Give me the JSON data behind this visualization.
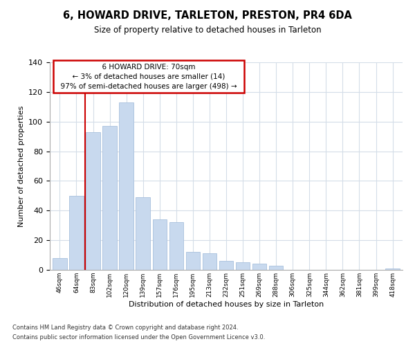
{
  "title": "6, HOWARD DRIVE, TARLETON, PRESTON, PR4 6DA",
  "subtitle": "Size of property relative to detached houses in Tarleton",
  "xlabel": "Distribution of detached houses by size in Tarleton",
  "ylabel": "Number of detached properties",
  "categories": [
    "46sqm",
    "64sqm",
    "83sqm",
    "102sqm",
    "120sqm",
    "139sqm",
    "157sqm",
    "176sqm",
    "195sqm",
    "213sqm",
    "232sqm",
    "251sqm",
    "269sqm",
    "288sqm",
    "306sqm",
    "325sqm",
    "344sqm",
    "362sqm",
    "381sqm",
    "399sqm",
    "418sqm"
  ],
  "values": [
    8,
    50,
    93,
    97,
    113,
    49,
    34,
    32,
    12,
    11,
    6,
    5,
    4,
    3,
    0,
    0,
    0,
    0,
    0,
    0,
    1
  ],
  "bar_color": "#c8d9ee",
  "bar_edge_color": "#a8c0de",
  "vline_x": 1.5,
  "vline_color": "#cc0000",
  "ylim": [
    0,
    140
  ],
  "yticks": [
    0,
    20,
    40,
    60,
    80,
    100,
    120,
    140
  ],
  "annotation_title": "6 HOWARD DRIVE: 70sqm",
  "annotation_line1": "← 3% of detached houses are smaller (14)",
  "annotation_line2": "97% of semi-detached houses are larger (498) →",
  "footnote1": "Contains HM Land Registry data © Crown copyright and database right 2024.",
  "footnote2": "Contains public sector information licensed under the Open Government Licence v3.0.",
  "background_color": "#ffffff",
  "grid_color": "#d4dde8"
}
